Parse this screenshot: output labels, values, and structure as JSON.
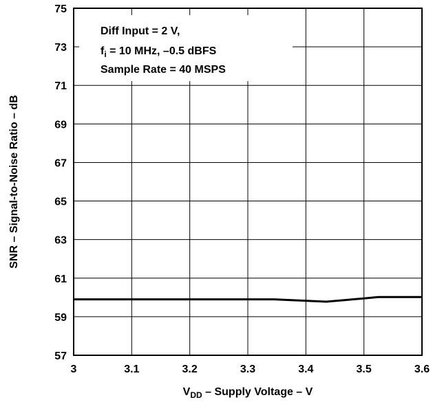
{
  "chart_data": {
    "type": "line",
    "title": "",
    "xlabel": {
      "prefix": "V",
      "subscript": "DD",
      "rest": " – Supply Voltage – V"
    },
    "ylabel": "SNR – Signal-to-Noise Ratio – dB",
    "xlim": [
      3,
      3.6
    ],
    "ylim": [
      57,
      75
    ],
    "xticks": [
      "3",
      "3.1",
      "3.2",
      "3.3",
      "3.4",
      "3.5",
      "3.6"
    ],
    "yticks": [
      "57",
      "59",
      "61",
      "63",
      "65",
      "67",
      "69",
      "71",
      "73",
      "75"
    ],
    "grid": true,
    "annotation": [
      {
        "text": "Diff Input = 2 V,"
      },
      {
        "prefix": "f",
        "subscript": "i",
        "rest": " = 10 MHz, –0.5 dBFS"
      },
      {
        "text": "Sample Rate = 40 MSPS"
      }
    ],
    "series": [
      {
        "x": [
          3.0,
          3.1,
          3.2,
          3.3,
          3.345,
          3.435,
          3.5,
          3.525,
          3.6
        ],
        "y": [
          59.9,
          59.9,
          59.9,
          59.9,
          59.9,
          59.78,
          59.95,
          60.02,
          60.02
        ]
      }
    ],
    "colors": {
      "line": "#000000",
      "grid": "#000000",
      "background": "#ffffff"
    }
  }
}
